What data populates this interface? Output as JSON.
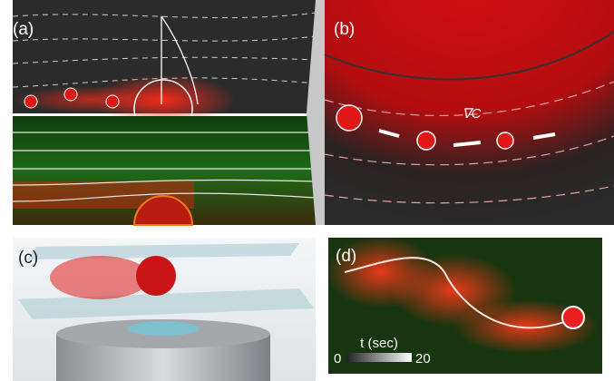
{
  "panels": [
    {
      "label": "(a)"
    },
    {
      "label": "(b)",
      "gradient_label": "∇C"
    },
    {
      "label": "(c)"
    },
    {
      "label": "(d)",
      "colorbar": {
        "title": "t (sec)",
        "min": 0,
        "max": 20
      }
    }
  ]
}
